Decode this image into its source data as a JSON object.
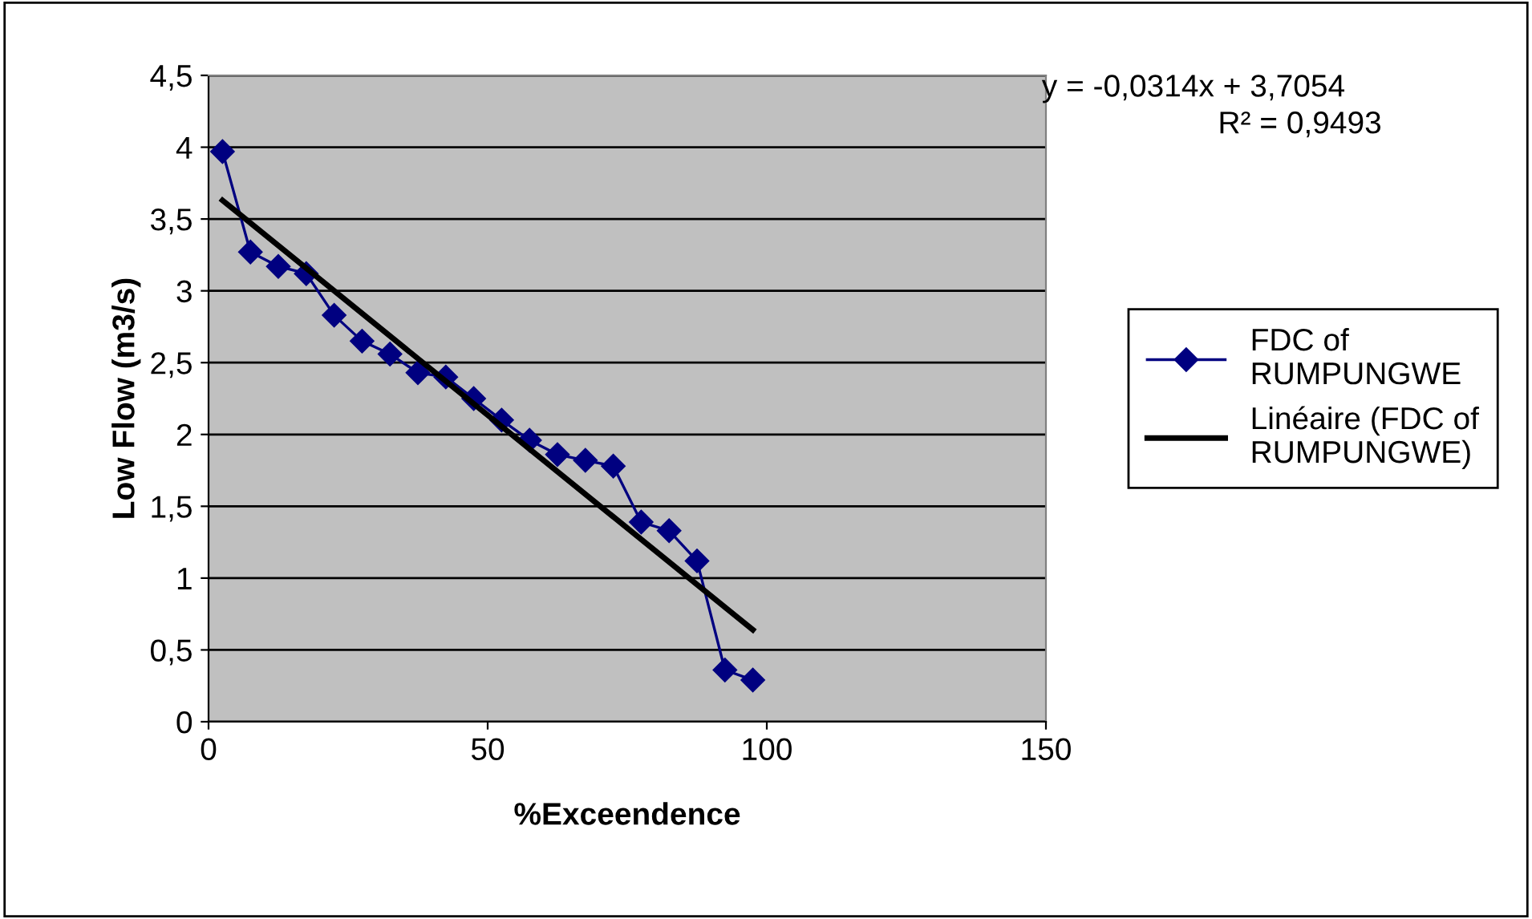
{
  "chart_data": {
    "type": "line",
    "xlabel": "%Exceendence",
    "ylabel": "Low Flow (m3/s)",
    "series": [
      {
        "name": "FDC of RUMPUNGWE",
        "color": "#000080",
        "marker": "diamond",
        "x": [
          2.5,
          7.5,
          12.5,
          17.5,
          22.5,
          27.5,
          32.5,
          37.5,
          42.5,
          47.5,
          52.5,
          57.5,
          62.5,
          67.5,
          72.5,
          77.5,
          82.5,
          87.5,
          92.5,
          97.5
        ],
        "values": [
          3.97,
          3.27,
          3.17,
          3.12,
          2.83,
          2.65,
          2.56,
          2.43,
          2.4,
          2.25,
          2.1,
          1.96,
          1.86,
          1.82,
          1.78,
          1.39,
          1.33,
          1.12,
          0.36,
          0.29
        ]
      },
      {
        "name": "Linéaire (FDC of RUMPUNGWE)",
        "color": "#000000",
        "marker": "none",
        "x": [
          2.5,
          97.5
        ],
        "values": [
          3.63,
          0.64
        ]
      }
    ],
    "annotations": [
      "y = -0,0314x + 3,7054",
      "R² = 0,9493"
    ],
    "xlim": [
      0,
      150
    ],
    "xticks": [
      0,
      50,
      100,
      150
    ],
    "ylim": [
      0,
      4.5
    ],
    "yticks": [
      0,
      {
        "value": 0.5,
        "label": "0,5"
      },
      1,
      {
        "value": 1.5,
        "label": "1,5"
      },
      2,
      {
        "value": 2.5,
        "label": "2,5"
      },
      3,
      {
        "value": 3.5,
        "label": "3,5"
      },
      4,
      {
        "value": 4.5,
        "label": "4,5"
      }
    ],
    "grid": "y",
    "legend": "right"
  }
}
